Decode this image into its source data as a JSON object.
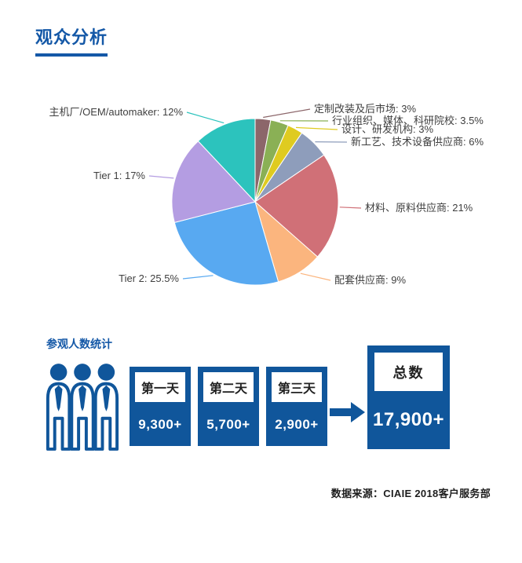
{
  "page": {
    "title": "观众分析"
  },
  "chart_data": {
    "type": "pie",
    "title": "观众分析",
    "start_angle": "12 o'clock",
    "direction": "clockwise",
    "legend_position": "leader-line labels around pie",
    "label_text_color": "#3F3F3F",
    "slices": [
      {
        "label": "定制改装及后市场",
        "value": 3,
        "display": "定制改装及后市场: 3%",
        "color": "#8C666A"
      },
      {
        "label": "行业组织、媒体、科研院校",
        "value": 3.5,
        "display": "行业组织、媒体、科研院校: 3.5%",
        "color": "#8AB055"
      },
      {
        "label": "设计、研发机构",
        "value": 3,
        "display": "设计、研发机构: 3%",
        "color": "#DFCB20"
      },
      {
        "label": "新工艺、技术设备供应商",
        "value": 6,
        "display": "新工艺、技术设备供应商: 6%",
        "color": "#8E9DBB"
      },
      {
        "label": "材料、原料供应商",
        "value": 21,
        "display": "材料、原料供应商: 21%",
        "color": "#D07077"
      },
      {
        "label": "配套供应商",
        "value": 9,
        "display": "配套供应商: 9%",
        "color": "#FBB57E"
      },
      {
        "label": "Tier 2",
        "value": 25.5,
        "display": "Tier 2: 25.5%",
        "color": "#58A9F1"
      },
      {
        "label": "Tier 1",
        "value": 17,
        "display": "Tier 1: 17%",
        "color": "#B49DE2"
      },
      {
        "label": "主机厂/OEM/automaker",
        "value": 12,
        "display": "主机厂/OEM/automaker: 12%",
        "color": "#2CC3BD"
      }
    ]
  },
  "stats": {
    "heading": "参观人数统计",
    "people_icon": "group-of-people-icon",
    "arrow_icon": "right-arrow-icon",
    "days": [
      {
        "label": "第一天",
        "value": "9,300+"
      },
      {
        "label": "第二天",
        "value": "5,700+"
      },
      {
        "label": "第三天",
        "value": "2,900+"
      }
    ],
    "total": {
      "label": "总数",
      "value": "17,900+"
    }
  },
  "footer": {
    "source": "数据来源：CIAIE 2018客户服务部"
  },
  "colors": {
    "accent_blue": "#10569B",
    "title_blue": "#1458A7",
    "pie_label_text": "#3F3F3F",
    "box_number_text": "#FFFFFF",
    "day_label_text": "#222222"
  }
}
